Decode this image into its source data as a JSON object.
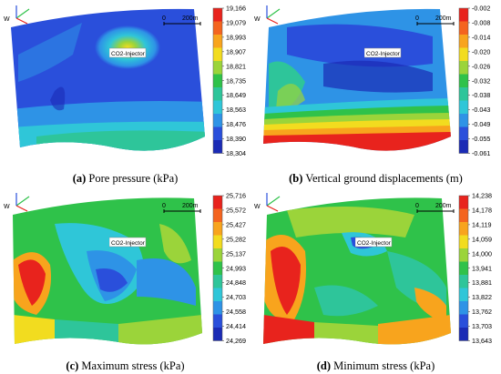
{
  "chart_data": [
    {
      "type": "heatmap",
      "panel_label": "(a)",
      "title": "Pore pressure (kPa)",
      "annotation": "CO2-Injector",
      "scale_label": "200m",
      "scale_zero": "0",
      "compass": "W",
      "colorbar_ticks": [
        "19,166",
        "19,079",
        "18,993",
        "18,907",
        "18,821",
        "18,735",
        "18,649",
        "18,563",
        "18,476",
        "18,390",
        "18,304"
      ]
    },
    {
      "type": "heatmap",
      "panel_label": "(b)",
      "title": "Vertical ground displacements (m)",
      "annotation": "CO2-Injector",
      "scale_label": "200m",
      "scale_zero": "0",
      "compass": "W",
      "colorbar_ticks": [
        "-0.002",
        "-0.008",
        "-0.014",
        "-0.020",
        "-0.026",
        "-0.032",
        "-0.038",
        "-0.043",
        "-0.049",
        "-0.055",
        "-0.061"
      ]
    },
    {
      "type": "heatmap",
      "panel_label": "(c)",
      "title": "Maximum stress (kPa)",
      "annotation": "CO2-Injector",
      "scale_label": "200m",
      "scale_zero": "0",
      "compass": "W",
      "colorbar_ticks": [
        "25,716",
        "25,572",
        "25,427",
        "25,282",
        "25,137",
        "24,993",
        "24,848",
        "24,703",
        "24,558",
        "24,414",
        "24,269"
      ]
    },
    {
      "type": "heatmap",
      "panel_label": "(d)",
      "title": "Minimum stress (kPa)",
      "annotation": "CO2-Injector",
      "scale_label": "200m",
      "scale_zero": "0",
      "compass": "W",
      "colorbar_ticks": [
        "14,238",
        "14,178",
        "14,119",
        "14,059",
        "14,000",
        "13,941",
        "13,881",
        "13,822",
        "13,762",
        "13,703",
        "13,643"
      ]
    }
  ],
  "colors": {
    "scale": [
      "#e8231d",
      "#f4641f",
      "#f8a41d",
      "#f2dc1f",
      "#9bd43a",
      "#2fc24a",
      "#2ec59a",
      "#2fc6d8",
      "#2e93e6",
      "#2a4fdb",
      "#1b2bb5"
    ]
  }
}
